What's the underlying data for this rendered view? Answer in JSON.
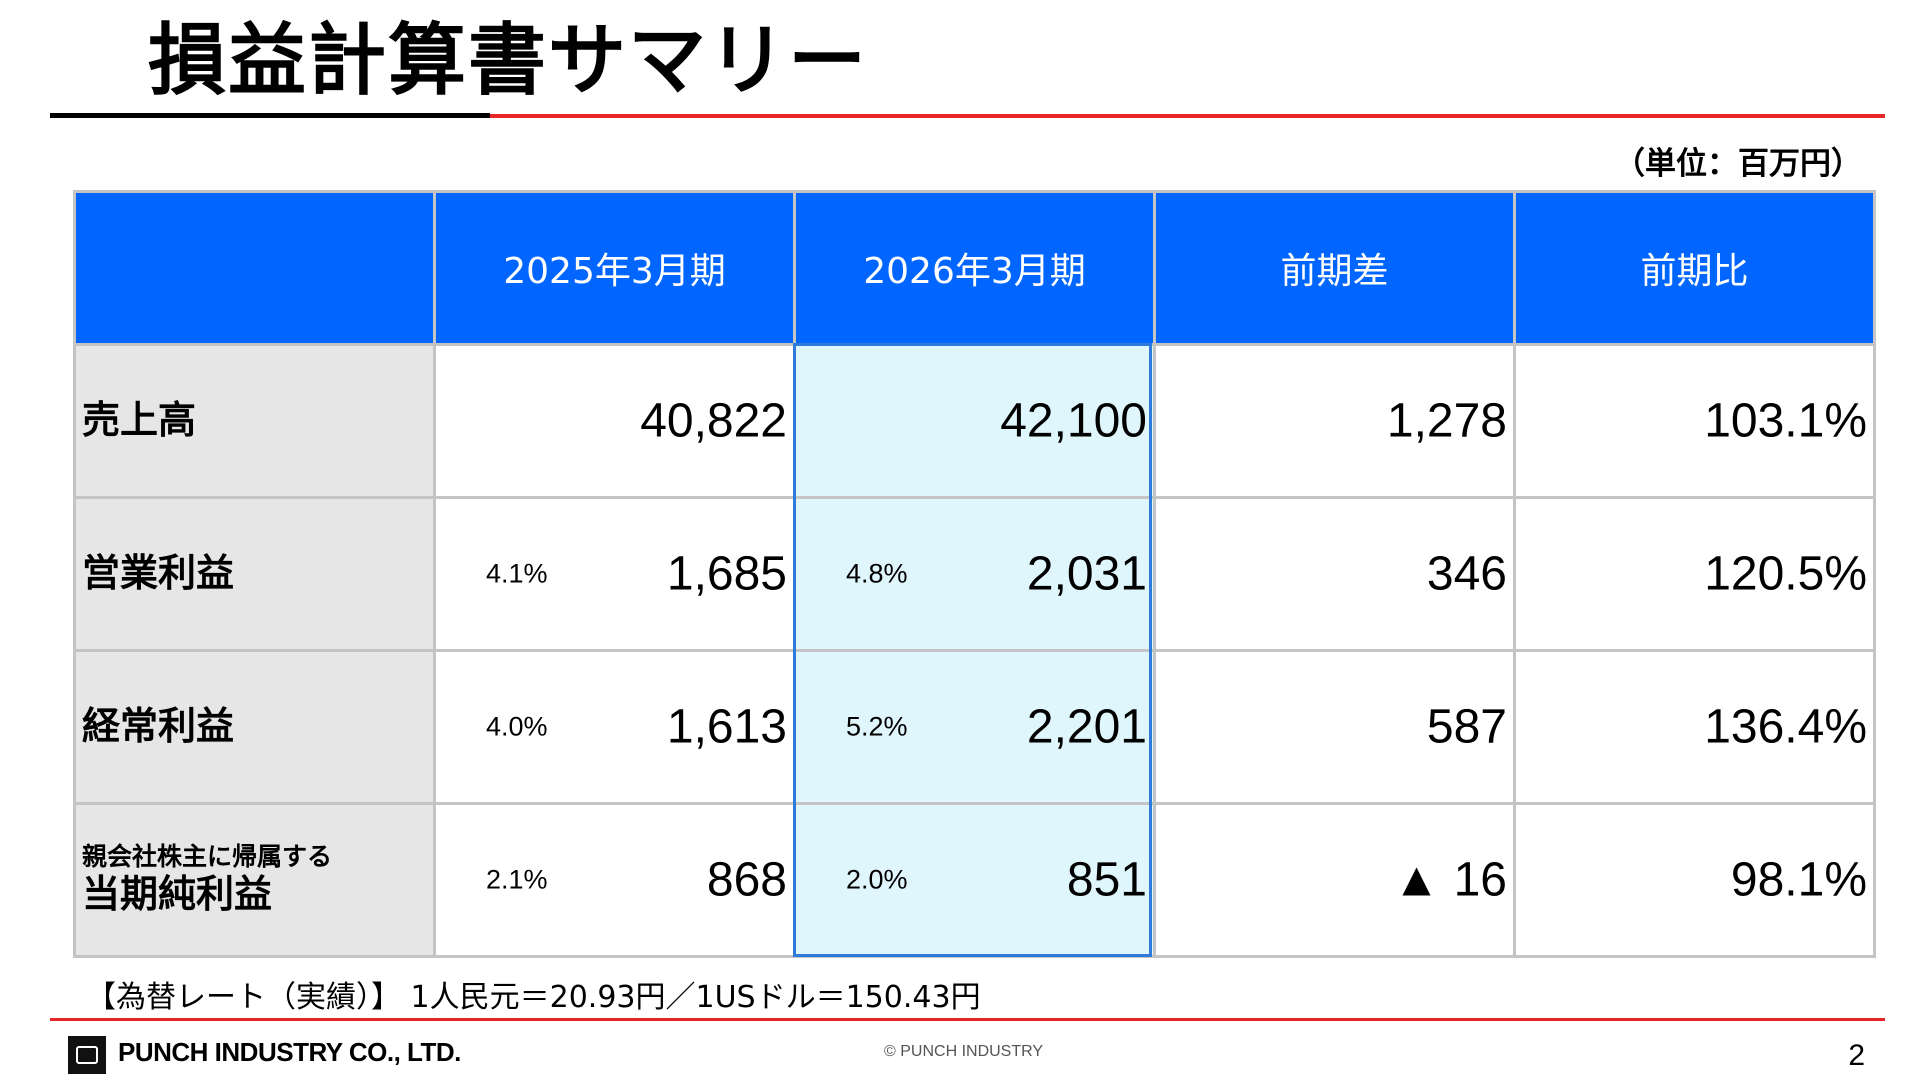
{
  "title": "損益計算書サマリー",
  "unit": "（単位：百万円）",
  "columns": [
    "",
    "2025年3月期",
    "2026年3月期",
    "前期差",
    "前期比"
  ],
  "rows": [
    {
      "label_small": "",
      "label": "売上高",
      "fy2025_margin": "",
      "fy2025": "40,822",
      "fy2026_margin": "",
      "fy2026": "42,100",
      "diff": "1,278",
      "ratio": "103.1%"
    },
    {
      "label_small": "",
      "label": "営業利益",
      "fy2025_margin": "4.1%",
      "fy2025": "1,685",
      "fy2026_margin": "4.8%",
      "fy2026": "2,031",
      "diff": "346",
      "ratio": "120.5%"
    },
    {
      "label_small": "",
      "label": "経常利益",
      "fy2025_margin": "4.0%",
      "fy2025": "1,613",
      "fy2026_margin": "5.2%",
      "fy2026": "2,201",
      "diff": "587",
      "ratio": "136.4%"
    },
    {
      "label_small": "親会社株主に帰属する",
      "label": "当期純利益",
      "fy2025_margin": "2.1%",
      "fy2025": "868",
      "fy2026_margin": "2.0%",
      "fy2026": "851",
      "diff": "▲ 16",
      "ratio": "98.1%"
    }
  ],
  "note": "【為替レート（実績）】 1人民元＝20.93円／1USドル＝150.43円",
  "footer": {
    "company": "PUNCH INDUSTRY CO., LTD.",
    "copyright": "© PUNCH INDUSTRY",
    "page": "2"
  },
  "colors": {
    "header_blue": "#0066ff",
    "accent_red": "#e8262a",
    "highlight": "#e0f6fd",
    "label_gray": "#e6e6e6"
  }
}
